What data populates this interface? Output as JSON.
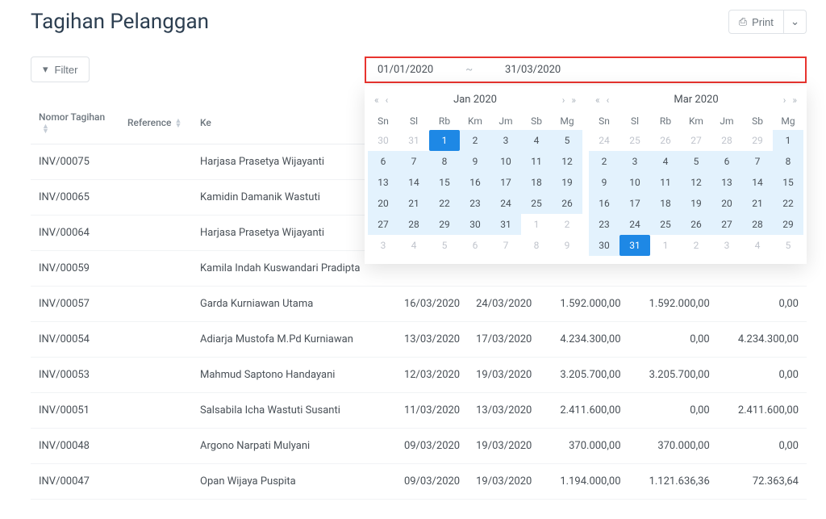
{
  "page": {
    "title": "Tagihan Pelanggan"
  },
  "toolbar": {
    "print": "Print",
    "filter": "Filter"
  },
  "dateRange": {
    "from": "01/01/2020",
    "sep": "~",
    "to": "31/03/2020"
  },
  "calLeft": {
    "title": "Jan 2020",
    "dows": [
      "Sn",
      "Sl",
      "Rb",
      "Km",
      "Jm",
      "Sb",
      "Mg"
    ],
    "days": [
      {
        "n": 30,
        "out": true
      },
      {
        "n": 31,
        "out": true
      },
      {
        "n": 1,
        "sel": true
      },
      {
        "n": 2,
        "range": true
      },
      {
        "n": 3,
        "range": true
      },
      {
        "n": 4,
        "range": true
      },
      {
        "n": 5,
        "range": true
      },
      {
        "n": 6,
        "range": true
      },
      {
        "n": 7,
        "range": true
      },
      {
        "n": 8,
        "range": true
      },
      {
        "n": 9,
        "range": true
      },
      {
        "n": 10,
        "range": true
      },
      {
        "n": 11,
        "range": true
      },
      {
        "n": 12,
        "range": true
      },
      {
        "n": 13,
        "range": true
      },
      {
        "n": 14,
        "range": true
      },
      {
        "n": 15,
        "range": true
      },
      {
        "n": 16,
        "range": true
      },
      {
        "n": 17,
        "range": true
      },
      {
        "n": 18,
        "range": true
      },
      {
        "n": 19,
        "range": true
      },
      {
        "n": 20,
        "range": true
      },
      {
        "n": 21,
        "range": true
      },
      {
        "n": 22,
        "range": true
      },
      {
        "n": 23,
        "range": true
      },
      {
        "n": 24,
        "range": true
      },
      {
        "n": 25,
        "range": true
      },
      {
        "n": 26,
        "range": true
      },
      {
        "n": 27,
        "range": true
      },
      {
        "n": 28,
        "range": true
      },
      {
        "n": 29,
        "range": true
      },
      {
        "n": 30,
        "range": true
      },
      {
        "n": 31,
        "range": true
      },
      {
        "n": 1,
        "out": true
      },
      {
        "n": 2,
        "out": true
      },
      {
        "n": 3,
        "out": true
      },
      {
        "n": 4,
        "out": true
      },
      {
        "n": 5,
        "out": true
      },
      {
        "n": 6,
        "out": true
      },
      {
        "n": 7,
        "out": true
      },
      {
        "n": 8,
        "out": true
      },
      {
        "n": 9,
        "out": true
      }
    ]
  },
  "calRight": {
    "title": "Mar 2020",
    "dows": [
      "Sn",
      "Sl",
      "Rb",
      "Km",
      "Jm",
      "Sb",
      "Mg"
    ],
    "days": [
      {
        "n": 24,
        "out": true
      },
      {
        "n": 25,
        "out": true
      },
      {
        "n": 26,
        "out": true
      },
      {
        "n": 27,
        "out": true
      },
      {
        "n": 28,
        "out": true
      },
      {
        "n": 29,
        "out": true
      },
      {
        "n": 1,
        "range": true
      },
      {
        "n": 2,
        "range": true
      },
      {
        "n": 3,
        "range": true
      },
      {
        "n": 4,
        "range": true
      },
      {
        "n": 5,
        "range": true
      },
      {
        "n": 6,
        "range": true
      },
      {
        "n": 7,
        "range": true
      },
      {
        "n": 8,
        "range": true
      },
      {
        "n": 9,
        "range": true
      },
      {
        "n": 10,
        "range": true
      },
      {
        "n": 11,
        "range": true
      },
      {
        "n": 12,
        "range": true
      },
      {
        "n": 13,
        "range": true
      },
      {
        "n": 14,
        "range": true
      },
      {
        "n": 15,
        "range": true
      },
      {
        "n": 16,
        "range": true
      },
      {
        "n": 17,
        "range": true
      },
      {
        "n": 18,
        "range": true
      },
      {
        "n": 19,
        "range": true
      },
      {
        "n": 20,
        "range": true
      },
      {
        "n": 21,
        "range": true
      },
      {
        "n": 22,
        "range": true
      },
      {
        "n": 23,
        "range": true
      },
      {
        "n": 24,
        "range": true
      },
      {
        "n": 25,
        "range": true
      },
      {
        "n": 26,
        "range": true
      },
      {
        "n": 27,
        "range": true
      },
      {
        "n": 28,
        "range": true
      },
      {
        "n": 29,
        "range": true
      },
      {
        "n": 30,
        "range": true
      },
      {
        "n": 31,
        "sel": true
      },
      {
        "n": 1,
        "out": true
      },
      {
        "n": 2,
        "out": true
      },
      {
        "n": 3,
        "out": true
      },
      {
        "n": 4,
        "out": true
      },
      {
        "n": 5,
        "out": true
      }
    ]
  },
  "table": {
    "columns": {
      "inv": "Nomor Tagihan",
      "ref": "Reference",
      "to": "Ke",
      "d1": "",
      "d2": "",
      "a1": "",
      "a2": "",
      "a3": ""
    },
    "rows": [
      {
        "inv": "INV/00075",
        "ref": "",
        "to": "Harjasa Prasetya Wijayanti",
        "d1": "",
        "d2": "",
        "a1": "",
        "a2": "",
        "a3": ""
      },
      {
        "inv": "INV/00065",
        "ref": "",
        "to": "Kamidin Damanik Wastuti",
        "d1": "",
        "d2": "",
        "a1": "",
        "a2": "",
        "a3": ""
      },
      {
        "inv": "INV/00064",
        "ref": "",
        "to": "Harjasa Prasetya Wijayanti",
        "d1": "",
        "d2": "",
        "a1": "",
        "a2": "",
        "a3": ""
      },
      {
        "inv": "INV/00059",
        "ref": "",
        "to": "Kamila Indah Kuswandari Pradipta",
        "d1": "",
        "d2": "",
        "a1": "",
        "a2": "",
        "a3": ""
      },
      {
        "inv": "INV/00057",
        "ref": "",
        "to": "Garda Kurniawan Utama",
        "d1": "16/03/2020",
        "d2": "24/03/2020",
        "a1": "1.592.000,00",
        "a2": "1.592.000,00",
        "a3": "0,00"
      },
      {
        "inv": "INV/00054",
        "ref": "",
        "to": "Adiarja Mustofa M.Pd Kurniawan",
        "d1": "13/03/2020",
        "d2": "17/03/2020",
        "a1": "4.234.300,00",
        "a2": "0,00",
        "a3": "4.234.300,00"
      },
      {
        "inv": "INV/00053",
        "ref": "",
        "to": "Mahmud Saptono Handayani",
        "d1": "12/03/2020",
        "d2": "19/03/2020",
        "a1": "3.205.700,00",
        "a2": "3.205.700,00",
        "a3": "0,00"
      },
      {
        "inv": "INV/00051",
        "ref": "",
        "to": "Salsabila Icha Wastuti Susanti",
        "d1": "11/03/2020",
        "d2": "13/03/2020",
        "a1": "2.411.600,00",
        "a2": "0,00",
        "a3": "2.411.600,00"
      },
      {
        "inv": "INV/00048",
        "ref": "",
        "to": "Argono Narpati Mulyani",
        "d1": "09/03/2020",
        "d2": "19/03/2020",
        "a1": "370.000,00",
        "a2": "370.000,00",
        "a3": "0,00"
      },
      {
        "inv": "INV/00047",
        "ref": "",
        "to": "Opan Wijaya Puspita",
        "d1": "09/03/2020",
        "d2": "19/03/2020",
        "a1": "1.194.000,00",
        "a2": "1.121.636,36",
        "a3": "72.363,64"
      }
    ]
  }
}
